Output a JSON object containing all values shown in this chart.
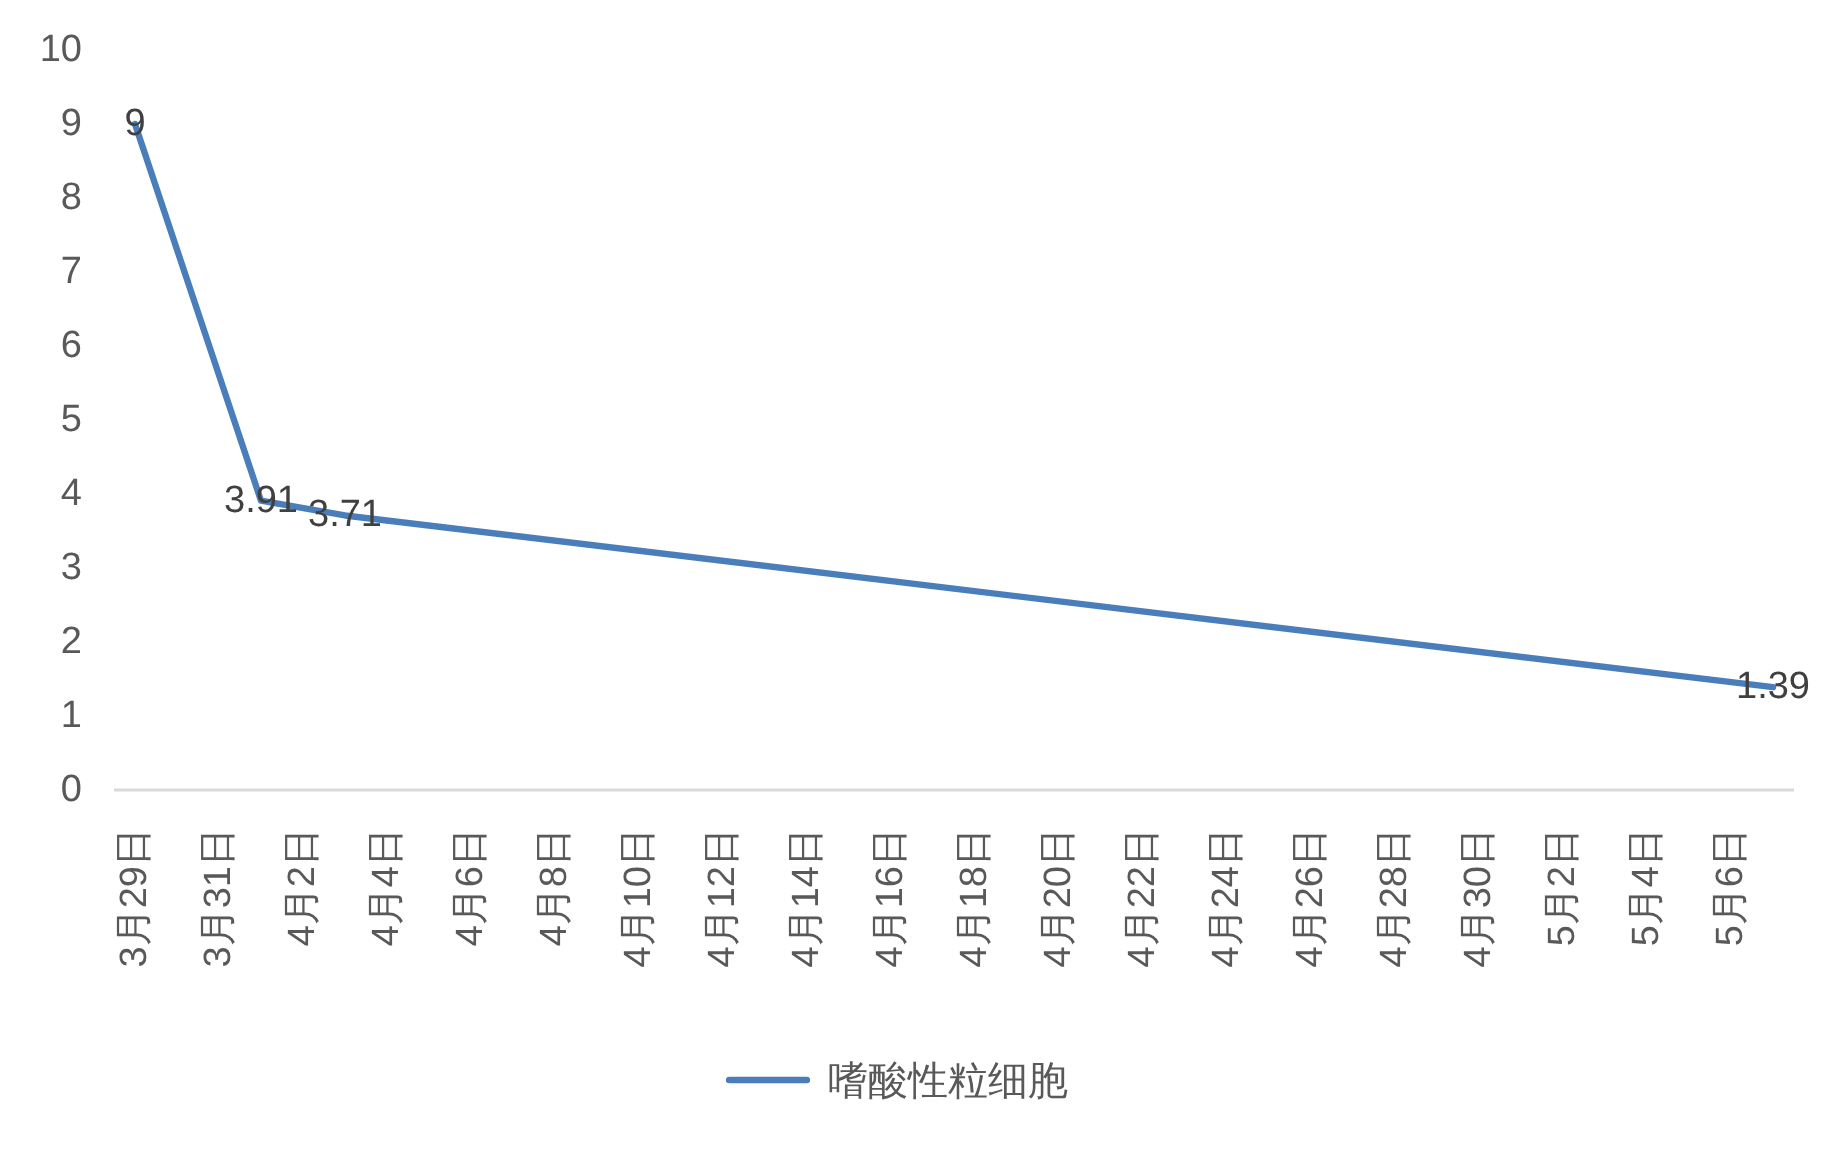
{
  "chart_data": {
    "type": "line",
    "x": [
      "--03-29",
      "--04-01",
      "--04-03",
      "--05-07"
    ],
    "series": [
      {
        "name": "嗜酸性粒细胞",
        "color": "#4a7ebb",
        "values": [
          9,
          3.91,
          3.71,
          1.39
        ]
      }
    ],
    "xlim": [
      "--03-28T12:00",
      "--05-07T12:00"
    ],
    "xticks": [
      {
        "value": "--03-29",
        "label": "3月29日"
      },
      {
        "value": "--03-31",
        "label": "3月31日"
      },
      {
        "value": "--04-02",
        "label": "4月2日"
      },
      {
        "value": "--04-04",
        "label": "4月4日"
      },
      {
        "value": "--04-06",
        "label": "4月6日"
      },
      {
        "value": "--04-08",
        "label": "4月8日"
      },
      {
        "value": "--04-10",
        "label": "4月10日"
      },
      {
        "value": "--04-12",
        "label": "4月12日"
      },
      {
        "value": "--04-14",
        "label": "4月14日"
      },
      {
        "value": "--04-16",
        "label": "4月16日"
      },
      {
        "value": "--04-18",
        "label": "4月18日"
      },
      {
        "value": "--04-20",
        "label": "4月20日"
      },
      {
        "value": "--04-22",
        "label": "4月22日"
      },
      {
        "value": "--04-24",
        "label": "4月24日"
      },
      {
        "value": "--04-26",
        "label": "4月26日"
      },
      {
        "value": "--04-28",
        "label": "4月28日"
      },
      {
        "value": "--04-30",
        "label": "4月30日"
      },
      {
        "value": "--05-02",
        "label": "5月2日"
      },
      {
        "value": "--05-04",
        "label": "5月4日"
      },
      {
        "value": "--05-06",
        "label": "5月6日"
      }
    ],
    "ylim": [
      0,
      10
    ],
    "yticks": [
      0,
      1,
      2,
      3,
      4,
      5,
      6,
      7,
      8,
      9,
      10
    ],
    "data_labels": true,
    "legend": "bottom",
    "marker": "none",
    "line_style": "solid"
  }
}
